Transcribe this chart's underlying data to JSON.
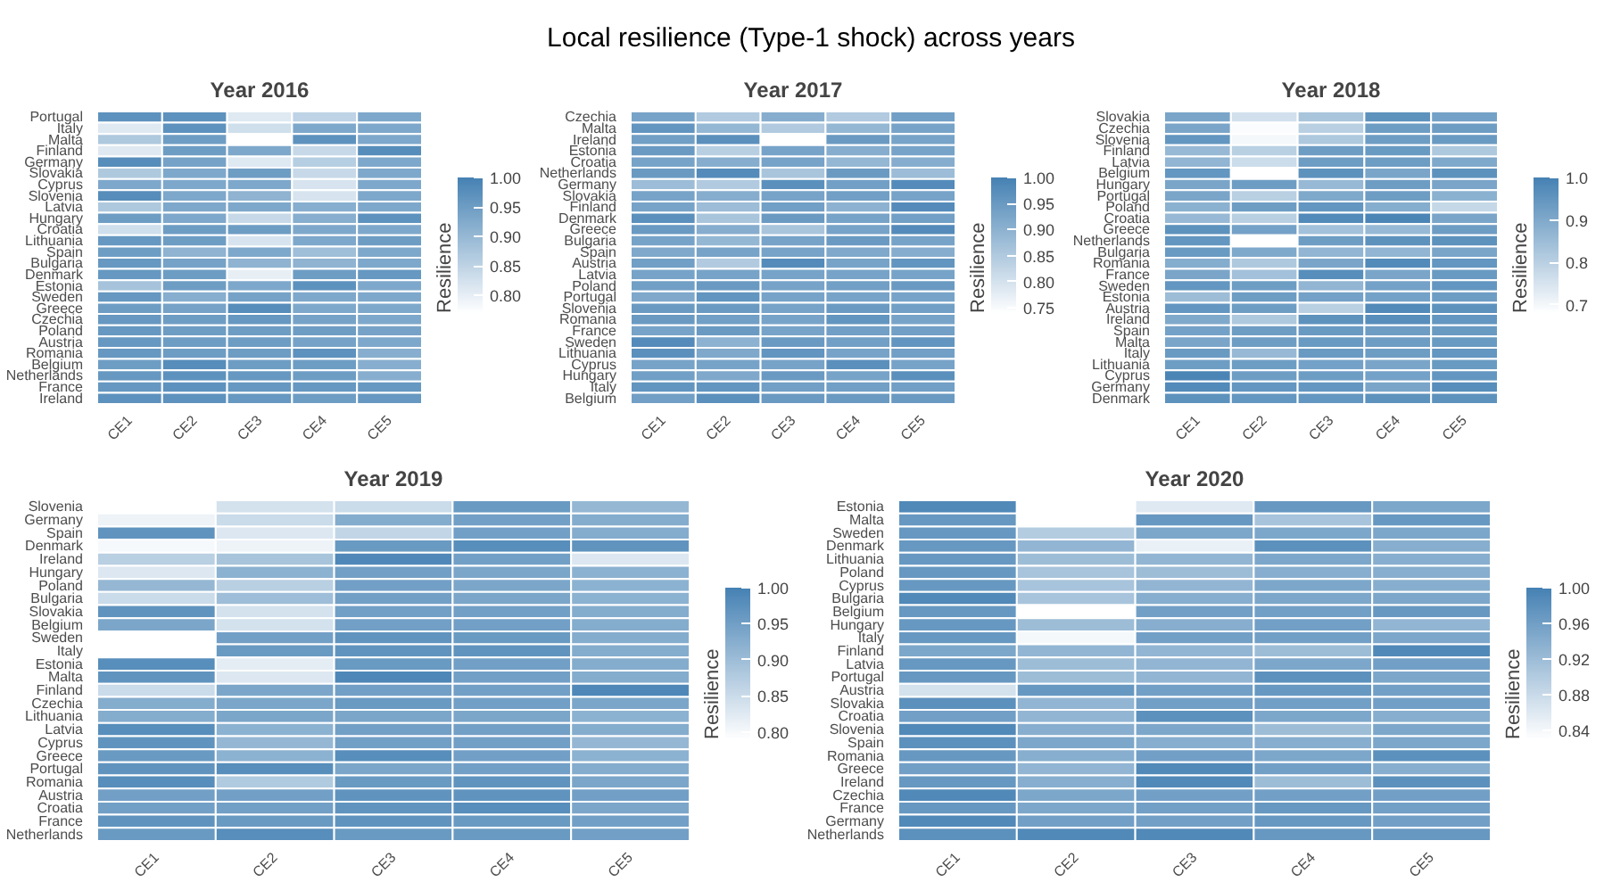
{
  "chart_data": [
    {
      "type": "heatmap",
      "title": "Year 2016",
      "annotations": [
        "Local resilience (Type-1 shock) across years"
      ],
      "clabel": "Resilience",
      "color": "#4682b4",
      "clim": [
        0.77,
        1.0
      ],
      "cticks": [
        {
          "value": 0.8,
          "label": "0.80"
        },
        0.85,
        {
          "value": 0.9,
          "label": "0.90"
        },
        0.95,
        {
          "value": 1.0,
          "label": "1.00"
        }
      ],
      "categories": [
        "CE1",
        "CE2",
        "CE3",
        "CE4",
        "CE5"
      ],
      "y_categories": [
        "Portugal",
        "Italy",
        "Malta",
        "Finland",
        "Germany",
        "Slovakia",
        "Cyprus",
        "Slovenia",
        "Latvia",
        "Hungary",
        "Croatia",
        "Lithuania",
        "Spain",
        "Bulgaria",
        "Denmark",
        "Estonia",
        "Sweden",
        "Greece",
        "Czechia",
        "Poland",
        "Austria",
        "Romania",
        "Belgium",
        "Netherlands",
        "France",
        "Ireland"
      ],
      "cells": [
        [
          0.97,
          0.97,
          0.81,
          0.85,
          0.93
        ],
        [
          0.81,
          0.97,
          0.83,
          0.93,
          0.93
        ],
        [
          0.87,
          0.95,
          0.77,
          0.97,
          0.93
        ],
        [
          0.81,
          0.95,
          0.93,
          0.84,
          0.98
        ],
        [
          0.98,
          0.94,
          0.81,
          0.86,
          0.93
        ],
        [
          0.87,
          0.93,
          0.95,
          0.84,
          0.93
        ],
        [
          0.93,
          0.93,
          0.93,
          0.82,
          0.93
        ],
        [
          0.98,
          0.93,
          0.91,
          0.82,
          0.93
        ],
        [
          0.87,
          0.93,
          0.93,
          0.92,
          0.93
        ],
        [
          0.95,
          0.93,
          0.84,
          0.92,
          0.97
        ],
        [
          0.83,
          0.95,
          0.95,
          0.93,
          0.93
        ],
        [
          0.96,
          0.95,
          0.82,
          0.93,
          0.95
        ],
        [
          0.95,
          0.91,
          0.93,
          0.89,
          0.93
        ],
        [
          0.96,
          0.94,
          0.91,
          0.91,
          0.93
        ],
        [
          0.96,
          0.95,
          0.8,
          0.95,
          0.96
        ],
        [
          0.88,
          0.95,
          0.93,
          0.97,
          0.93
        ],
        [
          0.96,
          0.92,
          0.94,
          0.93,
          0.93
        ],
        [
          0.95,
          0.94,
          0.98,
          0.93,
          0.93
        ],
        [
          0.96,
          0.95,
          0.96,
          0.94,
          0.93
        ],
        [
          0.96,
          0.95,
          0.95,
          0.95,
          0.94
        ],
        [
          0.96,
          0.95,
          0.95,
          0.94,
          0.93
        ],
        [
          0.96,
          0.95,
          0.95,
          0.97,
          0.92
        ],
        [
          0.95,
          0.98,
          0.95,
          0.95,
          0.92
        ],
        [
          0.96,
          0.97,
          0.96,
          0.95,
          0.92
        ],
        [
          0.96,
          0.97,
          0.96,
          0.96,
          0.96
        ],
        [
          0.97,
          0.97,
          0.96,
          0.95,
          0.96
        ]
      ]
    },
    {
      "type": "heatmap",
      "title": "Year 2017",
      "clabel": "Resilience",
      "color": "#4682b4",
      "clim": [
        0.74,
        1.0
      ],
      "cticks": [
        0.75,
        {
          "value": 0.8,
          "label": "0.80"
        },
        0.85,
        {
          "value": 0.9,
          "label": "0.90"
        },
        0.95,
        {
          "value": 1.0,
          "label": "1.00"
        }
      ],
      "categories": [
        "CE1",
        "CE2",
        "CE3",
        "CE4",
        "CE5"
      ],
      "y_categories": [
        "Czechia",
        "Malta",
        "Ireland",
        "Estonia",
        "Croatia",
        "Netherlands",
        "Germany",
        "Slovakia",
        "Finland",
        "Denmark",
        "Greece",
        "Bulgaria",
        "Spain",
        "Austria",
        "Latvia",
        "Poland",
        "Portugal",
        "Slovenia",
        "Romania",
        "France",
        "Sweden",
        "Lithuania",
        "Cyprus",
        "Hungary",
        "Italy",
        "Belgium"
      ],
      "cells": [
        [
          0.93,
          0.85,
          0.91,
          0.85,
          0.94
        ],
        [
          0.96,
          0.89,
          0.85,
          0.89,
          0.93
        ],
        [
          0.94,
          0.97,
          0.74,
          0.95,
          0.93
        ],
        [
          0.95,
          0.84,
          0.93,
          0.91,
          0.93
        ],
        [
          0.93,
          0.91,
          0.93,
          0.89,
          0.91
        ],
        [
          0.95,
          0.98,
          0.86,
          0.95,
          0.88
        ],
        [
          0.88,
          0.85,
          0.97,
          0.94,
          0.98
        ],
        [
          0.93,
          0.91,
          0.93,
          0.94,
          0.93
        ],
        [
          0.93,
          0.88,
          0.94,
          0.9,
          0.98
        ],
        [
          0.97,
          0.86,
          0.95,
          0.93,
          0.94
        ],
        [
          0.95,
          0.91,
          0.86,
          0.93,
          0.98
        ],
        [
          0.93,
          0.89,
          0.93,
          0.95,
          0.93
        ],
        [
          0.92,
          0.93,
          0.93,
          0.92,
          0.91
        ],
        [
          0.94,
          0.85,
          0.98,
          0.93,
          0.96
        ],
        [
          0.93,
          0.93,
          0.93,
          0.93,
          0.93
        ],
        [
          0.94,
          0.95,
          0.93,
          0.94,
          0.95
        ],
        [
          0.92,
          0.96,
          0.93,
          0.93,
          0.93
        ],
        [
          0.95,
          0.95,
          0.93,
          0.95,
          0.94
        ],
        [
          0.95,
          0.94,
          0.93,
          0.96,
          0.93
        ],
        [
          0.93,
          0.95,
          0.93,
          0.94,
          0.94
        ],
        [
          0.98,
          0.9,
          0.95,
          0.94,
          0.96
        ],
        [
          0.97,
          0.92,
          0.96,
          0.93,
          0.94
        ],
        [
          0.93,
          0.93,
          0.93,
          0.97,
          0.93
        ],
        [
          0.94,
          0.92,
          0.95,
          0.93,
          0.97
        ],
        [
          0.96,
          0.96,
          0.94,
          0.94,
          0.94
        ],
        [
          0.94,
          0.97,
          0.95,
          0.95,
          0.95
        ]
      ]
    },
    {
      "type": "heatmap",
      "title": "Year 2018",
      "clabel": "Resilience",
      "color": "#4682b4",
      "clim": [
        0.68,
        1.0
      ],
      "cticks": [
        0.7,
        0.8,
        0.9,
        {
          "value": 1.0,
          "label": "1.0"
        }
      ],
      "categories": [
        "CE1",
        "CE2",
        "CE3",
        "CE4",
        "CE5"
      ],
      "y_categories": [
        "Slovakia",
        "Czechia",
        "Slovenia",
        "Finland",
        "Latvia",
        "Belgium",
        "Hungary",
        "Portugal",
        "Poland",
        "Croatia",
        "Greece",
        "Netherlands",
        "Bulgaria",
        "Romania",
        "France",
        "Sweden",
        "Estonia",
        "Austria",
        "Ireland",
        "Spain",
        "Malta",
        "Italy",
        "Lithuania",
        "Cyprus",
        "Germany",
        "Denmark"
      ],
      "cells": [
        [
          0.91,
          0.76,
          0.83,
          0.96,
          0.92
        ],
        [
          0.91,
          0.69,
          0.8,
          0.93,
          0.93
        ],
        [
          0.95,
          0.7,
          0.82,
          0.93,
          0.94
        ],
        [
          0.86,
          0.8,
          0.93,
          0.94,
          0.82
        ],
        [
          0.87,
          0.77,
          0.93,
          0.93,
          0.9
        ],
        [
          0.95,
          0.68,
          0.96,
          0.91,
          0.96
        ],
        [
          0.91,
          0.93,
          0.86,
          0.93,
          0.91
        ],
        [
          0.91,
          0.8,
          0.9,
          0.93,
          0.88
        ],
        [
          0.88,
          0.93,
          0.95,
          0.89,
          0.78
        ],
        [
          0.86,
          0.8,
          0.98,
          0.99,
          0.91
        ],
        [
          0.96,
          0.92,
          0.84,
          0.86,
          0.93
        ],
        [
          0.95,
          0.68,
          0.93,
          0.96,
          0.96
        ],
        [
          0.94,
          0.9,
          0.87,
          0.87,
          0.91
        ],
        [
          0.89,
          0.82,
          0.91,
          0.98,
          0.95
        ],
        [
          0.91,
          0.84,
          0.97,
          0.91,
          0.94
        ],
        [
          0.95,
          0.93,
          0.87,
          0.92,
          0.95
        ],
        [
          0.85,
          0.93,
          0.92,
          0.92,
          0.93
        ],
        [
          0.95,
          0.93,
          0.8,
          0.98,
          0.96
        ],
        [
          0.9,
          0.82,
          0.96,
          0.97,
          0.95
        ],
        [
          0.92,
          0.93,
          0.94,
          0.93,
          0.94
        ],
        [
          0.91,
          0.93,
          0.94,
          0.93,
          0.94
        ],
        [
          0.94,
          0.86,
          0.94,
          0.93,
          0.95
        ],
        [
          0.93,
          0.93,
          0.92,
          0.91,
          0.94
        ],
        [
          0.99,
          0.93,
          0.93,
          0.92,
          0.95
        ],
        [
          0.98,
          0.95,
          0.95,
          0.91,
          0.97
        ],
        [
          0.96,
          0.95,
          0.95,
          0.96,
          0.96
        ]
      ]
    },
    {
      "type": "heatmap",
      "title": "Year 2019",
      "clabel": "Resilience",
      "color": "#4682b4",
      "clim": [
        0.79,
        1.0
      ],
      "cticks": [
        {
          "value": 0.8,
          "label": "0.80"
        },
        0.85,
        {
          "value": 0.9,
          "label": "0.90"
        },
        0.95,
        {
          "value": 1.0,
          "label": "1.00"
        }
      ],
      "categories": [
        "CE1",
        "CE2",
        "CE3",
        "CE4",
        "CE5"
      ],
      "y_categories": [
        "Slovenia",
        "Germany",
        "Spain",
        "Denmark",
        "Ireland",
        "Hungary",
        "Poland",
        "Bulgaria",
        "Slovakia",
        "Belgium",
        "Sweden",
        "Italy",
        "Estonia",
        "Malta",
        "Finland",
        "Czechia",
        "Lithuania",
        "Latvia",
        "Cyprus",
        "Greece",
        "Portugal",
        "Romania",
        "Austria",
        "Croatia",
        "France",
        "Netherlands"
      ],
      "cells": [
        [
          0.79,
          0.84,
          0.85,
          0.96,
          0.91
        ],
        [
          0.81,
          0.85,
          0.93,
          0.95,
          0.93
        ],
        [
          0.97,
          0.83,
          0.86,
          0.95,
          0.93
        ],
        [
          0.8,
          0.81,
          0.96,
          0.98,
          0.97
        ],
        [
          0.87,
          0.89,
          0.99,
          0.95,
          0.83
        ],
        [
          0.83,
          0.92,
          0.95,
          0.94,
          0.92
        ],
        [
          0.91,
          0.87,
          0.95,
          0.94,
          0.92
        ],
        [
          0.85,
          0.9,
          0.95,
          0.94,
          0.92
        ],
        [
          0.97,
          0.84,
          0.95,
          0.95,
          0.93
        ],
        [
          0.94,
          0.84,
          0.95,
          0.95,
          0.93
        ],
        [
          0.79,
          0.95,
          0.97,
          0.96,
          0.93
        ],
        [
          0.79,
          0.96,
          0.97,
          0.97,
          0.93
        ],
        [
          0.98,
          0.82,
          0.96,
          0.95,
          0.93
        ],
        [
          0.97,
          0.83,
          0.99,
          0.95,
          0.93
        ],
        [
          0.85,
          0.94,
          0.95,
          0.95,
          0.99
        ],
        [
          0.93,
          0.94,
          0.96,
          0.95,
          0.94
        ],
        [
          0.93,
          0.94,
          0.94,
          0.94,
          0.92
        ],
        [
          0.98,
          0.92,
          0.95,
          0.95,
          0.93
        ],
        [
          0.97,
          0.91,
          0.95,
          0.95,
          0.91
        ],
        [
          0.96,
          0.92,
          0.98,
          0.95,
          0.92
        ],
        [
          0.97,
          0.98,
          0.94,
          0.95,
          0.93
        ],
        [
          0.98,
          0.88,
          0.96,
          0.97,
          0.94
        ],
        [
          0.95,
          0.95,
          0.97,
          0.97,
          0.95
        ],
        [
          0.95,
          0.95,
          0.97,
          0.98,
          0.94
        ],
        [
          0.97,
          0.96,
          0.97,
          0.96,
          0.95
        ],
        [
          0.96,
          0.98,
          0.96,
          0.96,
          0.95
        ]
      ]
    },
    {
      "type": "heatmap",
      "title": "Year 2020",
      "clabel": "Resilience",
      "color": "#4682b4",
      "clim": [
        0.83,
        1.0
      ],
      "cticks": [
        0.84,
        0.88,
        0.92,
        0.96,
        {
          "value": 1.0,
          "label": "1.00"
        }
      ],
      "categories": [
        "CE1",
        "CE2",
        "CE3",
        "CE4",
        "CE5"
      ],
      "y_categories": [
        "Estonia",
        "Malta",
        "Sweden",
        "Denmark",
        "Lithuania",
        "Poland",
        "Cyprus",
        "Bulgaria",
        "Belgium",
        "Hungary",
        "Italy",
        "Finland",
        "Latvia",
        "Portugal",
        "Austria",
        "Slovakia",
        "Croatia",
        "Slovenia",
        "Spain",
        "Romania",
        "Greece",
        "Ireland",
        "Czechia",
        "France",
        "Germany",
        "Netherlands"
      ],
      "cells": [
        [
          0.99,
          0.83,
          0.86,
          0.97,
          0.95
        ],
        [
          0.97,
          0.83,
          0.97,
          0.91,
          0.97
        ],
        [
          0.97,
          0.9,
          0.95,
          0.95,
          0.95
        ],
        [
          0.97,
          0.93,
          0.85,
          0.98,
          0.94
        ],
        [
          0.97,
          0.92,
          0.93,
          0.95,
          0.94
        ],
        [
          0.97,
          0.91,
          0.92,
          0.94,
          0.94
        ],
        [
          0.97,
          0.91,
          0.93,
          0.95,
          0.94
        ],
        [
          0.99,
          0.91,
          0.94,
          0.95,
          0.95
        ],
        [
          0.97,
          0.83,
          0.96,
          0.96,
          0.97
        ],
        [
          0.97,
          0.92,
          0.94,
          0.96,
          0.93
        ],
        [
          0.97,
          0.84,
          0.96,
          0.96,
          0.95
        ],
        [
          0.95,
          0.93,
          0.93,
          0.92,
          0.99
        ],
        [
          0.97,
          0.92,
          0.93,
          0.95,
          0.96
        ],
        [
          0.97,
          0.92,
          0.93,
          0.98,
          0.95
        ],
        [
          0.87,
          0.97,
          0.96,
          0.97,
          0.96
        ],
        [
          0.98,
          0.93,
          0.96,
          0.96,
          0.96
        ],
        [
          0.96,
          0.93,
          0.98,
          0.95,
          0.94
        ],
        [
          0.99,
          0.94,
          0.95,
          0.92,
          0.95
        ],
        [
          0.98,
          0.95,
          0.94,
          0.94,
          0.95
        ],
        [
          0.97,
          0.94,
          0.96,
          0.95,
          0.98
        ],
        [
          0.96,
          0.93,
          0.99,
          0.96,
          0.94
        ],
        [
          0.97,
          0.94,
          0.99,
          0.92,
          0.98
        ],
        [
          0.99,
          0.95,
          0.96,
          0.96,
          0.96
        ],
        [
          0.97,
          0.95,
          0.96,
          0.97,
          0.96
        ],
        [
          0.99,
          0.96,
          0.96,
          0.97,
          0.96
        ],
        [
          0.98,
          0.99,
          0.99,
          0.97,
          0.97
        ]
      ]
    }
  ]
}
